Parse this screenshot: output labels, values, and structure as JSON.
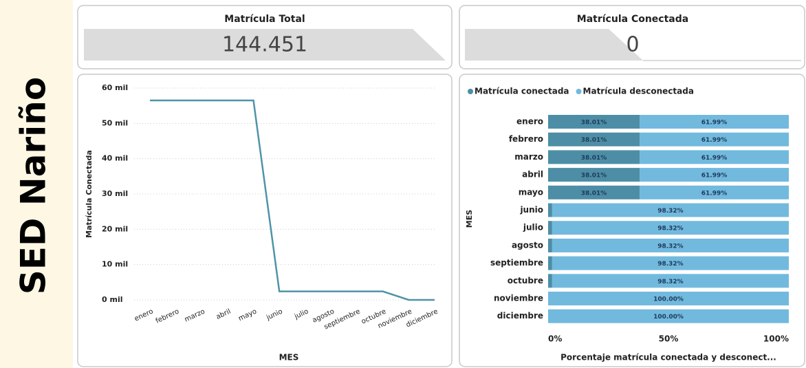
{
  "sidebar": {
    "title": "SED Nariño"
  },
  "cards": [
    {
      "title": "Matrícula Total",
      "value": "144.451"
    },
    {
      "title": "Matrícula Conectada",
      "value": "0"
    }
  ],
  "chart_data": [
    {
      "type": "line",
      "x_label": "MES",
      "y_label": "Matrícula Conectada",
      "color": "#4f93a8",
      "categories": [
        "enero",
        "febrero",
        "marzo",
        "abril",
        "mayo",
        "junio",
        "julio",
        "agosto",
        "septiembre",
        "octubre",
        "noviembre",
        "diciembre"
      ],
      "values": [
        56500,
        56500,
        56500,
        56500,
        56500,
        2400,
        2400,
        2400,
        2400,
        2400,
        0,
        0
      ],
      "ylim": [
        0,
        60000
      ],
      "yticks": [
        {
          "value": 0,
          "label": "0 mil"
        },
        {
          "value": 10000,
          "label": "10 mil"
        },
        {
          "value": 20000,
          "label": "20 mil"
        },
        {
          "value": 30000,
          "label": "30 mil"
        },
        {
          "value": 40000,
          "label": "40 mil"
        },
        {
          "value": 50000,
          "label": "50 mil"
        },
        {
          "value": 60000,
          "label": "60 mil"
        }
      ],
      "grid": true
    },
    {
      "type": "stacked_barh",
      "x_label": "Porcentaje matrícula conectada y desconect...",
      "y_label": "MES",
      "categories": [
        "enero",
        "febrero",
        "marzo",
        "abril",
        "mayo",
        "junio",
        "julio",
        "agosto",
        "septiembre",
        "octubre",
        "noviembre",
        "diciembre"
      ],
      "series": [
        {
          "name": "Matrícula conectada",
          "color": "#4d8ea6",
          "values": [
            38.01,
            38.01,
            38.01,
            38.01,
            38.01,
            1.68,
            1.68,
            1.68,
            1.68,
            1.68,
            0,
            0
          ],
          "value_labels": [
            "38.01%",
            "38.01%",
            "38.01%",
            "38.01%",
            "38.01%",
            null,
            null,
            null,
            null,
            null,
            null,
            null
          ]
        },
        {
          "name": "Matrícula desconectada",
          "color": "#72b9de",
          "values": [
            61.99,
            61.99,
            61.99,
            61.99,
            61.99,
            98.32,
            98.32,
            98.32,
            98.32,
            98.32,
            100,
            100
          ],
          "value_labels": [
            "61.99%",
            "61.99%",
            "61.99%",
            "61.99%",
            "61.99%",
            "98.32%",
            "98.32%",
            "98.32%",
            "98.32%",
            "98.32%",
            "100.00%",
            "100.00%"
          ]
        }
      ],
      "xlim": [
        0,
        100
      ],
      "xticks": [
        {
          "value": 0,
          "label": "0%"
        },
        {
          "value": 50,
          "label": "50%"
        },
        {
          "value": 100,
          "label": "100%"
        }
      ],
      "legend": "top-left"
    }
  ]
}
